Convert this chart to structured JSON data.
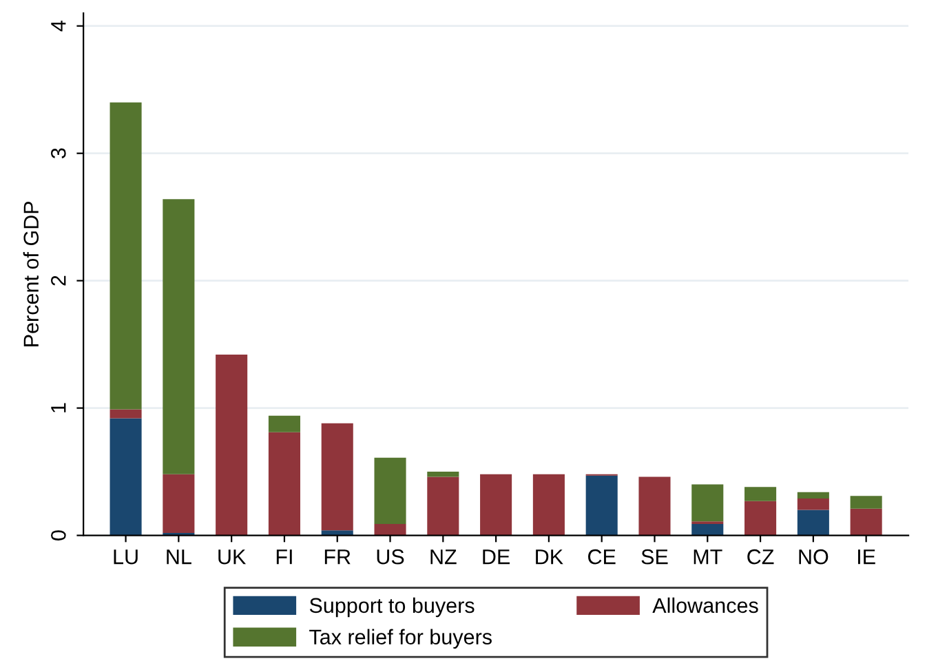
{
  "chart_data": {
    "type": "bar",
    "stacked": true,
    "ylabel": "Percent of GDP",
    "categories": [
      "LU",
      "NL",
      "UK",
      "FI",
      "FR",
      "US",
      "NZ",
      "DE",
      "DK",
      "CE",
      "SE",
      "MT",
      "CZ",
      "NO",
      "IE"
    ],
    "series": [
      {
        "name": "Support to buyers",
        "color": "#1a476f",
        "values": [
          0.92,
          0.02,
          0,
          0,
          0.04,
          0,
          0,
          0,
          0,
          0.47,
          0,
          0.09,
          0,
          0.2,
          0
        ]
      },
      {
        "name": "Allowances",
        "color": "#90353b",
        "values": [
          0.07,
          0.46,
          1.42,
          0.81,
          0.84,
          0.09,
          0.46,
          0.48,
          0.48,
          0.01,
          0.46,
          0.02,
          0.27,
          0.09,
          0.21
        ]
      },
      {
        "name": "Tax relief for buyers",
        "color": "#55752f",
        "values": [
          2.41,
          2.16,
          0,
          0.13,
          0,
          0.52,
          0.04,
          0,
          0,
          0,
          0,
          0.29,
          0.11,
          0.05,
          0.1
        ]
      }
    ],
    "ylim": [
      0,
      4.1
    ],
    "yticks": [
      0,
      1,
      2,
      3,
      4
    ],
    "grid": "y",
    "legend": "bottom"
  }
}
